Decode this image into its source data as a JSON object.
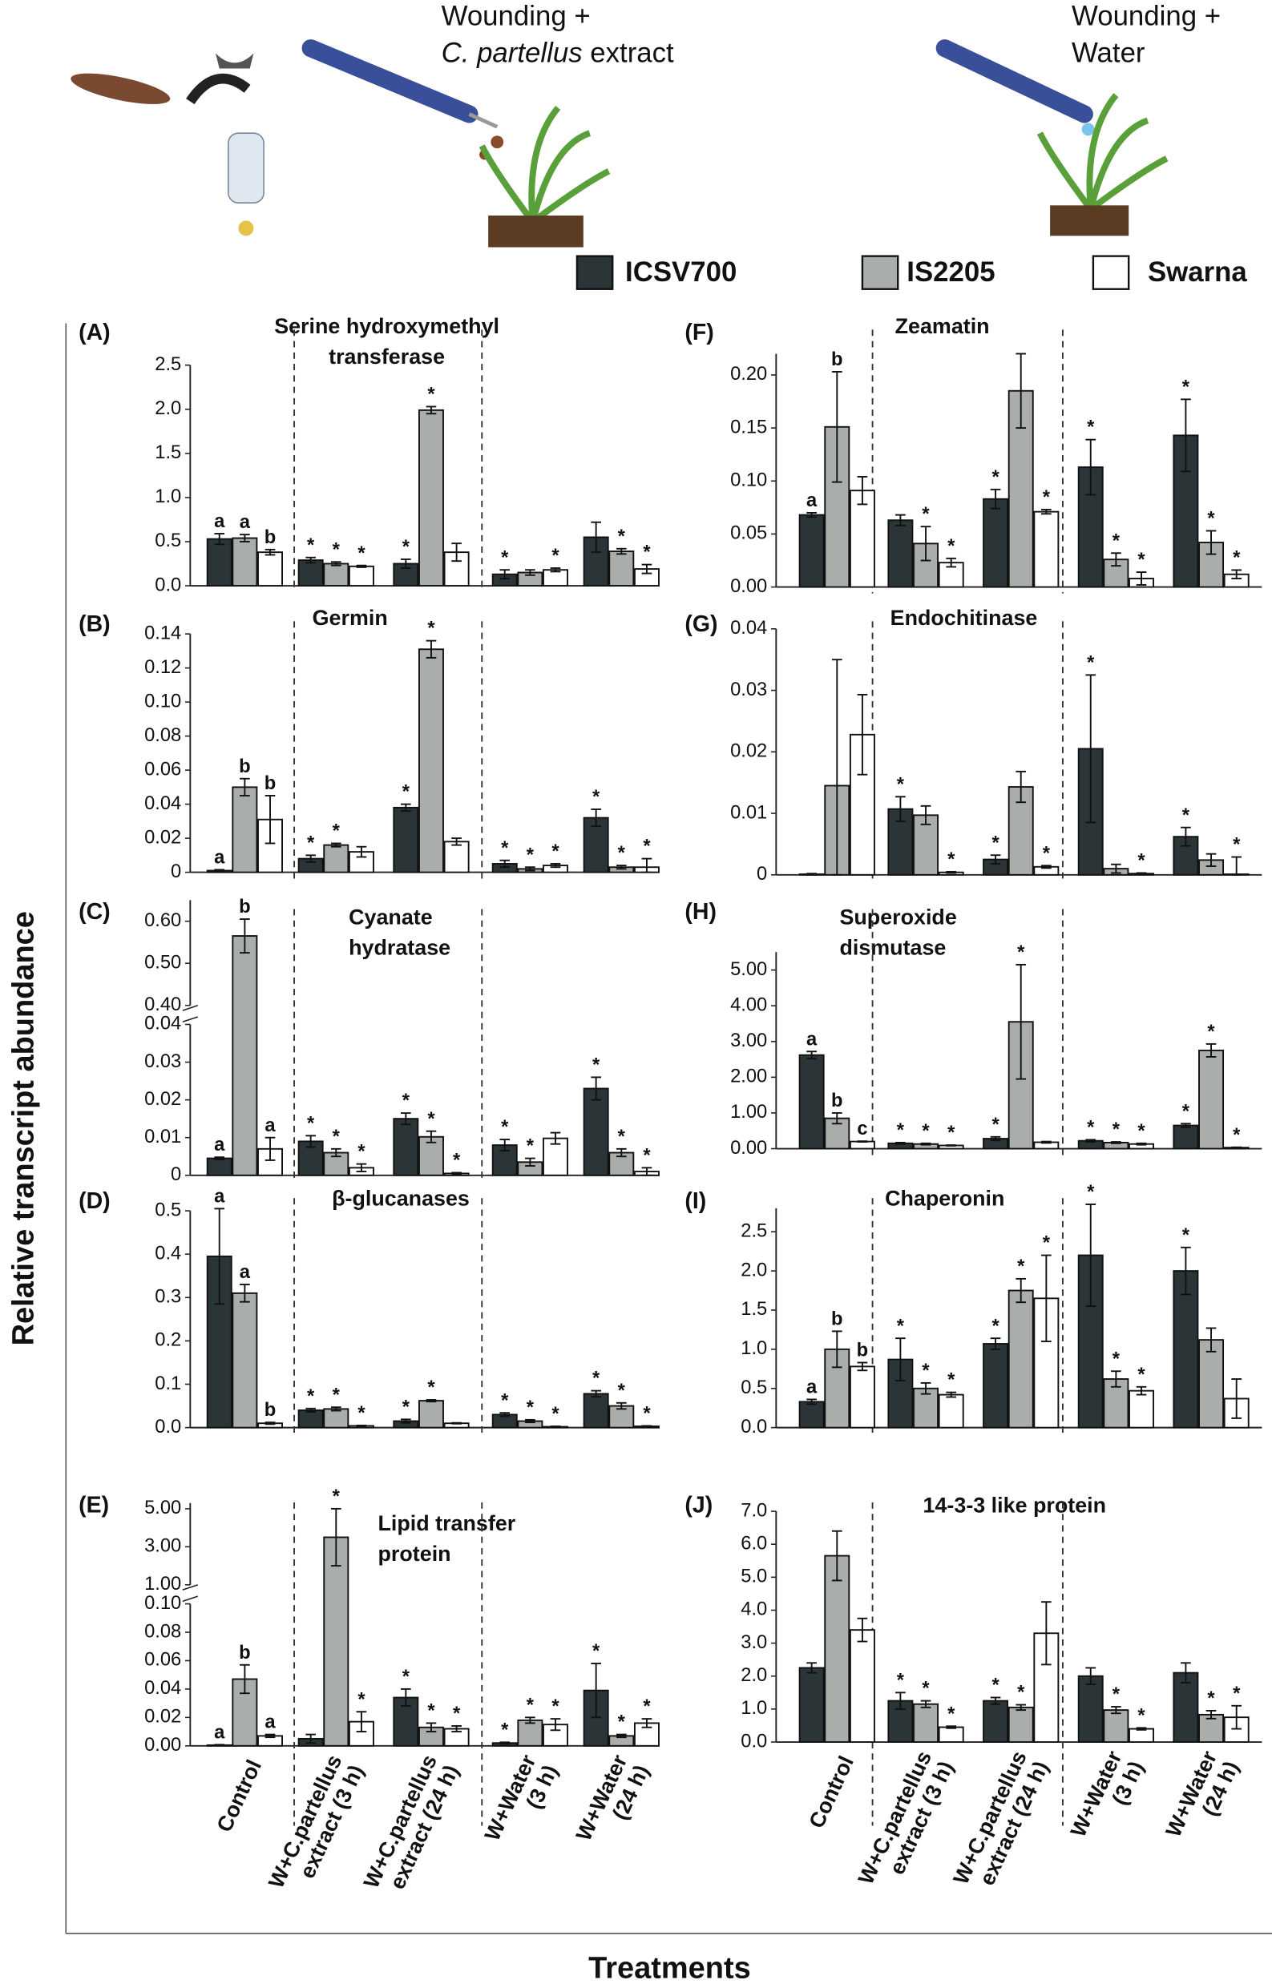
{
  "header": {
    "left": [
      "Wounding +",
      "C. partellus",
      " extract"
    ],
    "right": [
      "Wounding +",
      "Water"
    ]
  },
  "legend": [
    {
      "name": "ICSV700",
      "color": "#2b3537"
    },
    {
      "name": "IS2205",
      "color": "#a9aeaa"
    },
    {
      "name": "Swarna",
      "color": "#ffffff"
    }
  ],
  "y_label": "Relative transcript abundance",
  "x_label": "Treatments",
  "categories": [
    [
      "Control"
    ],
    [
      "W+C.partellus",
      "extract (3 h)"
    ],
    [
      "W+C.partellus",
      "extract (24 h)"
    ],
    [
      "W+Water",
      "(3 h)"
    ],
    [
      "W+Water",
      "(24 h)"
    ]
  ],
  "chart_data": [
    {
      "type": "bar",
      "panel": "(A)",
      "title": [
        "Serine hydroxymethyl",
        "transferase"
      ],
      "ylim": [
        0,
        2.5
      ],
      "yticks": [
        {
          "value": 0,
          "label": "0.0"
        },
        0.5,
        {
          "value": 1,
          "label": "1.0"
        },
        1.5,
        {
          "value": 2,
          "label": "2.0"
        },
        2.5
      ],
      "series": [
        {
          "values": [
            0.53,
            0.29,
            0.25,
            0.13,
            0.55
          ],
          "errors": [
            0.06,
            0.03,
            0.05,
            0.05,
            0.17
          ],
          "annotations": [
            "a",
            "*",
            "*",
            "*",
            null
          ]
        },
        {
          "values": [
            0.54,
            0.25,
            1.99,
            0.15,
            0.39
          ],
          "errors": [
            0.04,
            0.02,
            0.04,
            0.03,
            0.03
          ],
          "annotations": [
            "a",
            "*",
            "*",
            null,
            "*"
          ]
        },
        {
          "values": [
            0.38,
            0.22,
            0.38,
            0.18,
            0.19
          ],
          "errors": [
            0.03,
            0.01,
            0.1,
            0.02,
            0.05
          ],
          "annotations": [
            "b",
            "*",
            null,
            "*",
            "*"
          ]
        }
      ]
    },
    {
      "type": "bar",
      "panel": "(B)",
      "title": [
        "Germin"
      ],
      "ylim": [
        0,
        0.14
      ],
      "yticks": [
        0,
        0.02,
        0.04,
        0.06,
        0.08,
        {
          "value": 0.1,
          "label": "0.10"
        },
        0.12,
        0.14
      ],
      "series": [
        {
          "values": [
            0.001,
            0.008,
            0.038,
            0.005,
            0.032
          ],
          "errors": [
            0.0005,
            0.002,
            0.002,
            0.002,
            0.005
          ],
          "annotations": [
            "a",
            "*",
            "*",
            "*",
            "*"
          ]
        },
        {
          "values": [
            0.05,
            0.016,
            0.131,
            0.002,
            0.003
          ],
          "errors": [
            0.005,
            0.001,
            0.005,
            0.001,
            0.001
          ],
          "annotations": [
            "b",
            "*",
            "*",
            "*",
            "*"
          ]
        },
        {
          "values": [
            0.031,
            0.012,
            0.018,
            0.004,
            0.003
          ],
          "errors": [
            0.014,
            0.003,
            0.002,
            0.001,
            0.005
          ],
          "annotations": [
            "b",
            null,
            null,
            "*",
            "*"
          ]
        }
      ]
    },
    {
      "type": "bar",
      "panel": "(C)",
      "title": [
        "Cyanate",
        "hydratase"
      ],
      "ylim": [
        0,
        0.04
      ],
      "yticks": [
        0,
        0.01,
        0.02,
        0.03,
        0.04
      ],
      "break": {
        "ylim": [
          0.4,
          0.65
        ],
        "yticks": [
          {
            "value": 0.4,
            "label": "0.40"
          },
          {
            "value": 0.5,
            "label": "0.50"
          },
          {
            "value": 0.6,
            "label": "0.60"
          }
        ]
      },
      "series": [
        {
          "values": [
            0.0045,
            0.009,
            0.015,
            0.008,
            0.023
          ],
          "errors": [
            0.0003,
            0.0015,
            0.0015,
            0.0015,
            0.003
          ],
          "annotations": [
            "a",
            "*",
            "*",
            "*",
            "*"
          ]
        },
        {
          "values": [
            0.565,
            0.006,
            0.0102,
            0.0035,
            0.006
          ],
          "errors": [
            0.04,
            0.001,
            0.0015,
            0.001,
            0.001
          ],
          "annotations": [
            "b",
            "*",
            "*",
            "*",
            "*"
          ]
        },
        {
          "values": [
            0.007,
            0.002,
            0.0005,
            0.0098,
            0.001
          ],
          "errors": [
            0.003,
            0.001,
            0.0002,
            0.0015,
            0.001
          ],
          "annotations": [
            "a",
            "*",
            "*",
            null,
            "*"
          ]
        }
      ]
    },
    {
      "type": "bar",
      "panel": "(D)",
      "title": [
        "β-glucanases"
      ],
      "ylim": [
        0,
        0.5
      ],
      "yticks": [
        {
          "value": 0,
          "label": "0.0"
        },
        0.1,
        0.2,
        0.3,
        0.4,
        0.5
      ],
      "series": [
        {
          "values": [
            0.395,
            0.04,
            0.015,
            0.03,
            0.078
          ],
          "errors": [
            0.11,
            0.004,
            0.004,
            0.004,
            0.007
          ],
          "annotations": [
            "a",
            "*",
            "*",
            "*",
            "*"
          ]
        },
        {
          "values": [
            0.31,
            0.043,
            0.062,
            0.015,
            0.05
          ],
          "errors": [
            0.02,
            0.004,
            0.002,
            0.003,
            0.007
          ],
          "annotations": [
            "a",
            "*",
            "*",
            "*",
            "*"
          ]
        },
        {
          "values": [
            0.01,
            0.004,
            0.01,
            0.002,
            0.003
          ],
          "errors": [
            0.002,
            0.001,
            0.001,
            0.001,
            0.001
          ],
          "annotations": [
            "b",
            "*",
            null,
            "*",
            "*"
          ]
        }
      ]
    },
    {
      "type": "bar",
      "panel": "(E)",
      "title": [
        "Lipid transfer",
        "protein"
      ],
      "ylim": [
        0,
        0.1
      ],
      "yticks": [
        {
          "value": 0,
          "label": "0.00"
        },
        0.02,
        0.04,
        0.06,
        0.08,
        {
          "value": 0.1,
          "label": "0.10"
        }
      ],
      "break": {
        "ylim": [
          1,
          5.3
        ],
        "yticks": [
          {
            "value": 1,
            "label": "1.00"
          },
          {
            "value": 3,
            "label": "3.00"
          },
          {
            "value": 5,
            "label": "5.00"
          }
        ]
      },
      "series": [
        {
          "values": [
            0.0005,
            0.005,
            0.034,
            0.002,
            0.039
          ],
          "errors": [
            0.0003,
            0.003,
            0.006,
            0.0005,
            0.019
          ],
          "annotations": [
            "a",
            null,
            "*",
            "*",
            "*"
          ]
        },
        {
          "values": [
            0.047,
            3.5,
            0.013,
            0.018,
            0.007
          ],
          "errors": [
            0.01,
            1.5,
            0.003,
            0.002,
            0.001
          ],
          "annotations": [
            "b",
            "*",
            "*",
            "*",
            "*"
          ]
        },
        {
          "values": [
            0.007,
            0.017,
            0.012,
            0.015,
            0.016
          ],
          "errors": [
            0.001,
            0.007,
            0.002,
            0.004,
            0.003
          ],
          "annotations": [
            "a",
            "*",
            "*",
            "*",
            "*"
          ]
        }
      ]
    },
    {
      "type": "bar",
      "panel": "(F)",
      "title": [
        "Zeamatin"
      ],
      "ylim": [
        0,
        0.22
      ],
      "yticks": [
        {
          "value": 0,
          "label": "0.00"
        },
        0.05,
        {
          "value": 0.1,
          "label": "0.10"
        },
        0.15,
        {
          "value": 0.2,
          "label": "0.20"
        }
      ],
      "series": [
        {
          "values": [
            0.068,
            0.063,
            0.083,
            0.113,
            0.143
          ],
          "errors": [
            0.002,
            0.005,
            0.009,
            0.026,
            0.034
          ],
          "annotations": [
            "a",
            null,
            "*",
            "*",
            "*"
          ]
        },
        {
          "values": [
            0.151,
            0.041,
            0.185,
            0.026,
            0.042
          ],
          "errors": [
            0.052,
            0.016,
            0.035,
            0.006,
            0.011
          ],
          "annotations": [
            "b",
            "*",
            null,
            "*",
            "*"
          ]
        },
        {
          "values": [
            0.091,
            0.023,
            0.071,
            0.008,
            0.012
          ],
          "errors": [
            0.013,
            0.004,
            0.002,
            0.006,
            0.004
          ],
          "annotations": [
            null,
            "*",
            "*",
            "*",
            "*"
          ]
        }
      ]
    },
    {
      "type": "bar",
      "panel": "(G)",
      "title": [
        "Endochitinase"
      ],
      "ylim": [
        0,
        0.04
      ],
      "yticks": [
        0,
        0.01,
        0.02,
        0.03,
        0.04
      ],
      "series": [
        {
          "values": [
            0.0001,
            0.0107,
            0.0025,
            0.0205,
            0.0062
          ],
          "errors": [
            0.0001,
            0.002,
            0.0007,
            0.012,
            0.0015
          ],
          "annotations": [
            null,
            "*",
            "*",
            "*",
            "*"
          ]
        },
        {
          "values": [
            0.0145,
            0.0097,
            0.0143,
            0.001,
            0.0024
          ],
          "errors": [
            0.0205,
            0.0015,
            0.0025,
            0.0007,
            0.001
          ],
          "annotations": [
            null,
            null,
            null,
            null,
            null
          ]
        },
        {
          "values": [
            0.0228,
            0.0004,
            0.0013,
            0.0002,
            0.0001
          ],
          "errors": [
            0.0065,
            0.0001,
            0.0002,
            0.0001,
            0.0028
          ],
          "annotations": [
            null,
            "*",
            "*",
            "*",
            "*"
          ]
        }
      ]
    },
    {
      "type": "bar",
      "panel": "(H)",
      "title": [
        "Superoxide",
        "dismutase"
      ],
      "ylim": [
        0,
        5.5
      ],
      "yticks": [
        {
          "value": 0,
          "label": "0.00"
        },
        {
          "value": 1,
          "label": "1.00"
        },
        {
          "value": 2,
          "label": "2.00"
        },
        {
          "value": 3,
          "label": "3.00"
        },
        {
          "value": 4,
          "label": "4.00"
        },
        {
          "value": 5,
          "label": "5.00"
        }
      ],
      "series": [
        {
          "values": [
            2.62,
            0.15,
            0.28,
            0.22,
            0.65
          ],
          "errors": [
            0.1,
            0.02,
            0.05,
            0.03,
            0.05
          ],
          "annotations": [
            "a",
            "*",
            "*",
            "*",
            "*"
          ]
        },
        {
          "values": [
            0.85,
            0.13,
            3.55,
            0.17,
            2.75
          ],
          "errors": [
            0.15,
            0.02,
            1.6,
            0.02,
            0.18
          ],
          "annotations": [
            "b",
            "*",
            "*",
            "*",
            "*"
          ]
        },
        {
          "values": [
            0.2,
            0.09,
            0.18,
            0.13,
            0.03
          ],
          "errors": [
            0.01,
            0.01,
            0.02,
            0.02,
            0.01
          ],
          "annotations": [
            "c",
            "*",
            null,
            "*",
            "*"
          ]
        }
      ]
    },
    {
      "type": "bar",
      "panel": "(I)",
      "title": [
        "Chaperonin"
      ],
      "ylim": [
        0,
        2.8
      ],
      "yticks": [
        {
          "value": 0,
          "label": "0.0"
        },
        0.5,
        {
          "value": 1,
          "label": "1.0"
        },
        1.5,
        {
          "value": 2,
          "label": "2.0"
        },
        2.5
      ],
      "series": [
        {
          "values": [
            0.33,
            0.87,
            1.07,
            2.2,
            2.0
          ],
          "errors": [
            0.03,
            0.27,
            0.07,
            0.65,
            0.3
          ],
          "annotations": [
            "a",
            "*",
            "*",
            "*",
            "*"
          ]
        },
        {
          "values": [
            1.0,
            0.5,
            1.75,
            0.62,
            1.12
          ],
          "errors": [
            0.23,
            0.07,
            0.15,
            0.1,
            0.15
          ],
          "annotations": [
            "b",
            "*",
            "*",
            "*",
            null
          ]
        },
        {
          "values": [
            0.78,
            0.42,
            1.65,
            0.47,
            0.37
          ],
          "errors": [
            0.05,
            0.03,
            0.55,
            0.05,
            0.25
          ],
          "annotations": [
            "b",
            "*",
            "*",
            "*",
            null
          ]
        }
      ]
    },
    {
      "type": "bar",
      "panel": "(J)",
      "title": [
        "14-3-3 like protein"
      ],
      "ylim": [
        0,
        7
      ],
      "yticks": [
        {
          "value": 0,
          "label": "0.0"
        },
        {
          "value": 1,
          "label": "1.0"
        },
        {
          "value": 2,
          "label": "2.0"
        },
        {
          "value": 3,
          "label": "3.0"
        },
        {
          "value": 4,
          "label": "4.0"
        },
        {
          "value": 5,
          "label": "5.0"
        },
        {
          "value": 6,
          "label": "6.0"
        },
        {
          "value": 7,
          "label": "7.0"
        }
      ],
      "series": [
        {
          "values": [
            2.25,
            1.25,
            1.25,
            2.0,
            2.1
          ],
          "errors": [
            0.15,
            0.25,
            0.1,
            0.25,
            0.3
          ],
          "annotations": [
            null,
            "*",
            "*",
            null,
            null
          ]
        },
        {
          "values": [
            5.65,
            1.15,
            1.05,
            0.97,
            0.83
          ],
          "errors": [
            0.75,
            0.1,
            0.08,
            0.1,
            0.12
          ],
          "annotations": [
            null,
            "*",
            "*",
            "*",
            "*"
          ]
        },
        {
          "values": [
            3.4,
            0.45,
            3.3,
            0.4,
            0.75
          ],
          "errors": [
            0.35,
            0.03,
            0.95,
            0.03,
            0.35
          ],
          "annotations": [
            null,
            "*",
            null,
            "*",
            "*"
          ]
        }
      ]
    }
  ]
}
